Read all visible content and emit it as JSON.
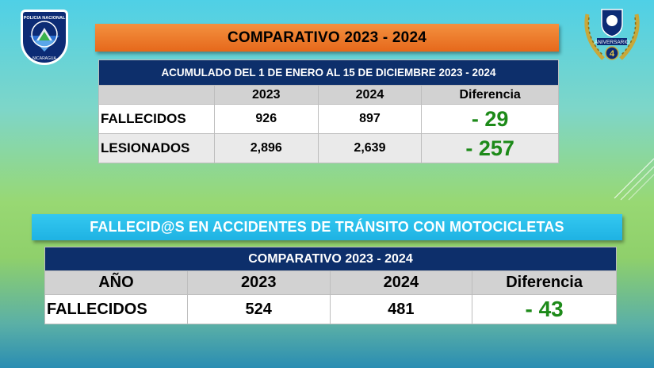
{
  "logos": {
    "left_text": "POLICIA NACIONAL",
    "left_sub": "NICARAGUA",
    "right_text": "ANIVERSARIO",
    "right_number": "4"
  },
  "title": "COMPARATIVO 2023 - 2024",
  "table1": {
    "header": "ACUMULADO DEL 1 DE ENERO AL 15 DE DICIEMBRE  2023 - 2024",
    "columns": [
      "",
      "2023",
      "2024",
      "Diferencia"
    ],
    "rows": [
      {
        "label": "FALLECIDOS",
        "y2023": "926",
        "y2024": "897",
        "diff": "- 29"
      },
      {
        "label": "LESIONADOS",
        "y2023": "2,896",
        "y2024": "2,639",
        "diff": "- 257"
      }
    ]
  },
  "banner2": "FALLECID@S EN ACCIDENTES DE TRÁNSITO CON MOTOCICLETAS",
  "table2": {
    "header": "COMPARATIVO 2023 - 2024",
    "columns": [
      "AÑO",
      "2023",
      "2024",
      "Diferencia"
    ],
    "rows": [
      {
        "label": "FALLECIDOS",
        "y2023": "524",
        "y2024": "481",
        "diff": "- 43"
      }
    ]
  },
  "colors": {
    "title_orange": "#e6681b",
    "table_header_navy": "#0d2f6b",
    "banner_blue": "#1eb2e3",
    "diff_green": "#1d8a19"
  }
}
